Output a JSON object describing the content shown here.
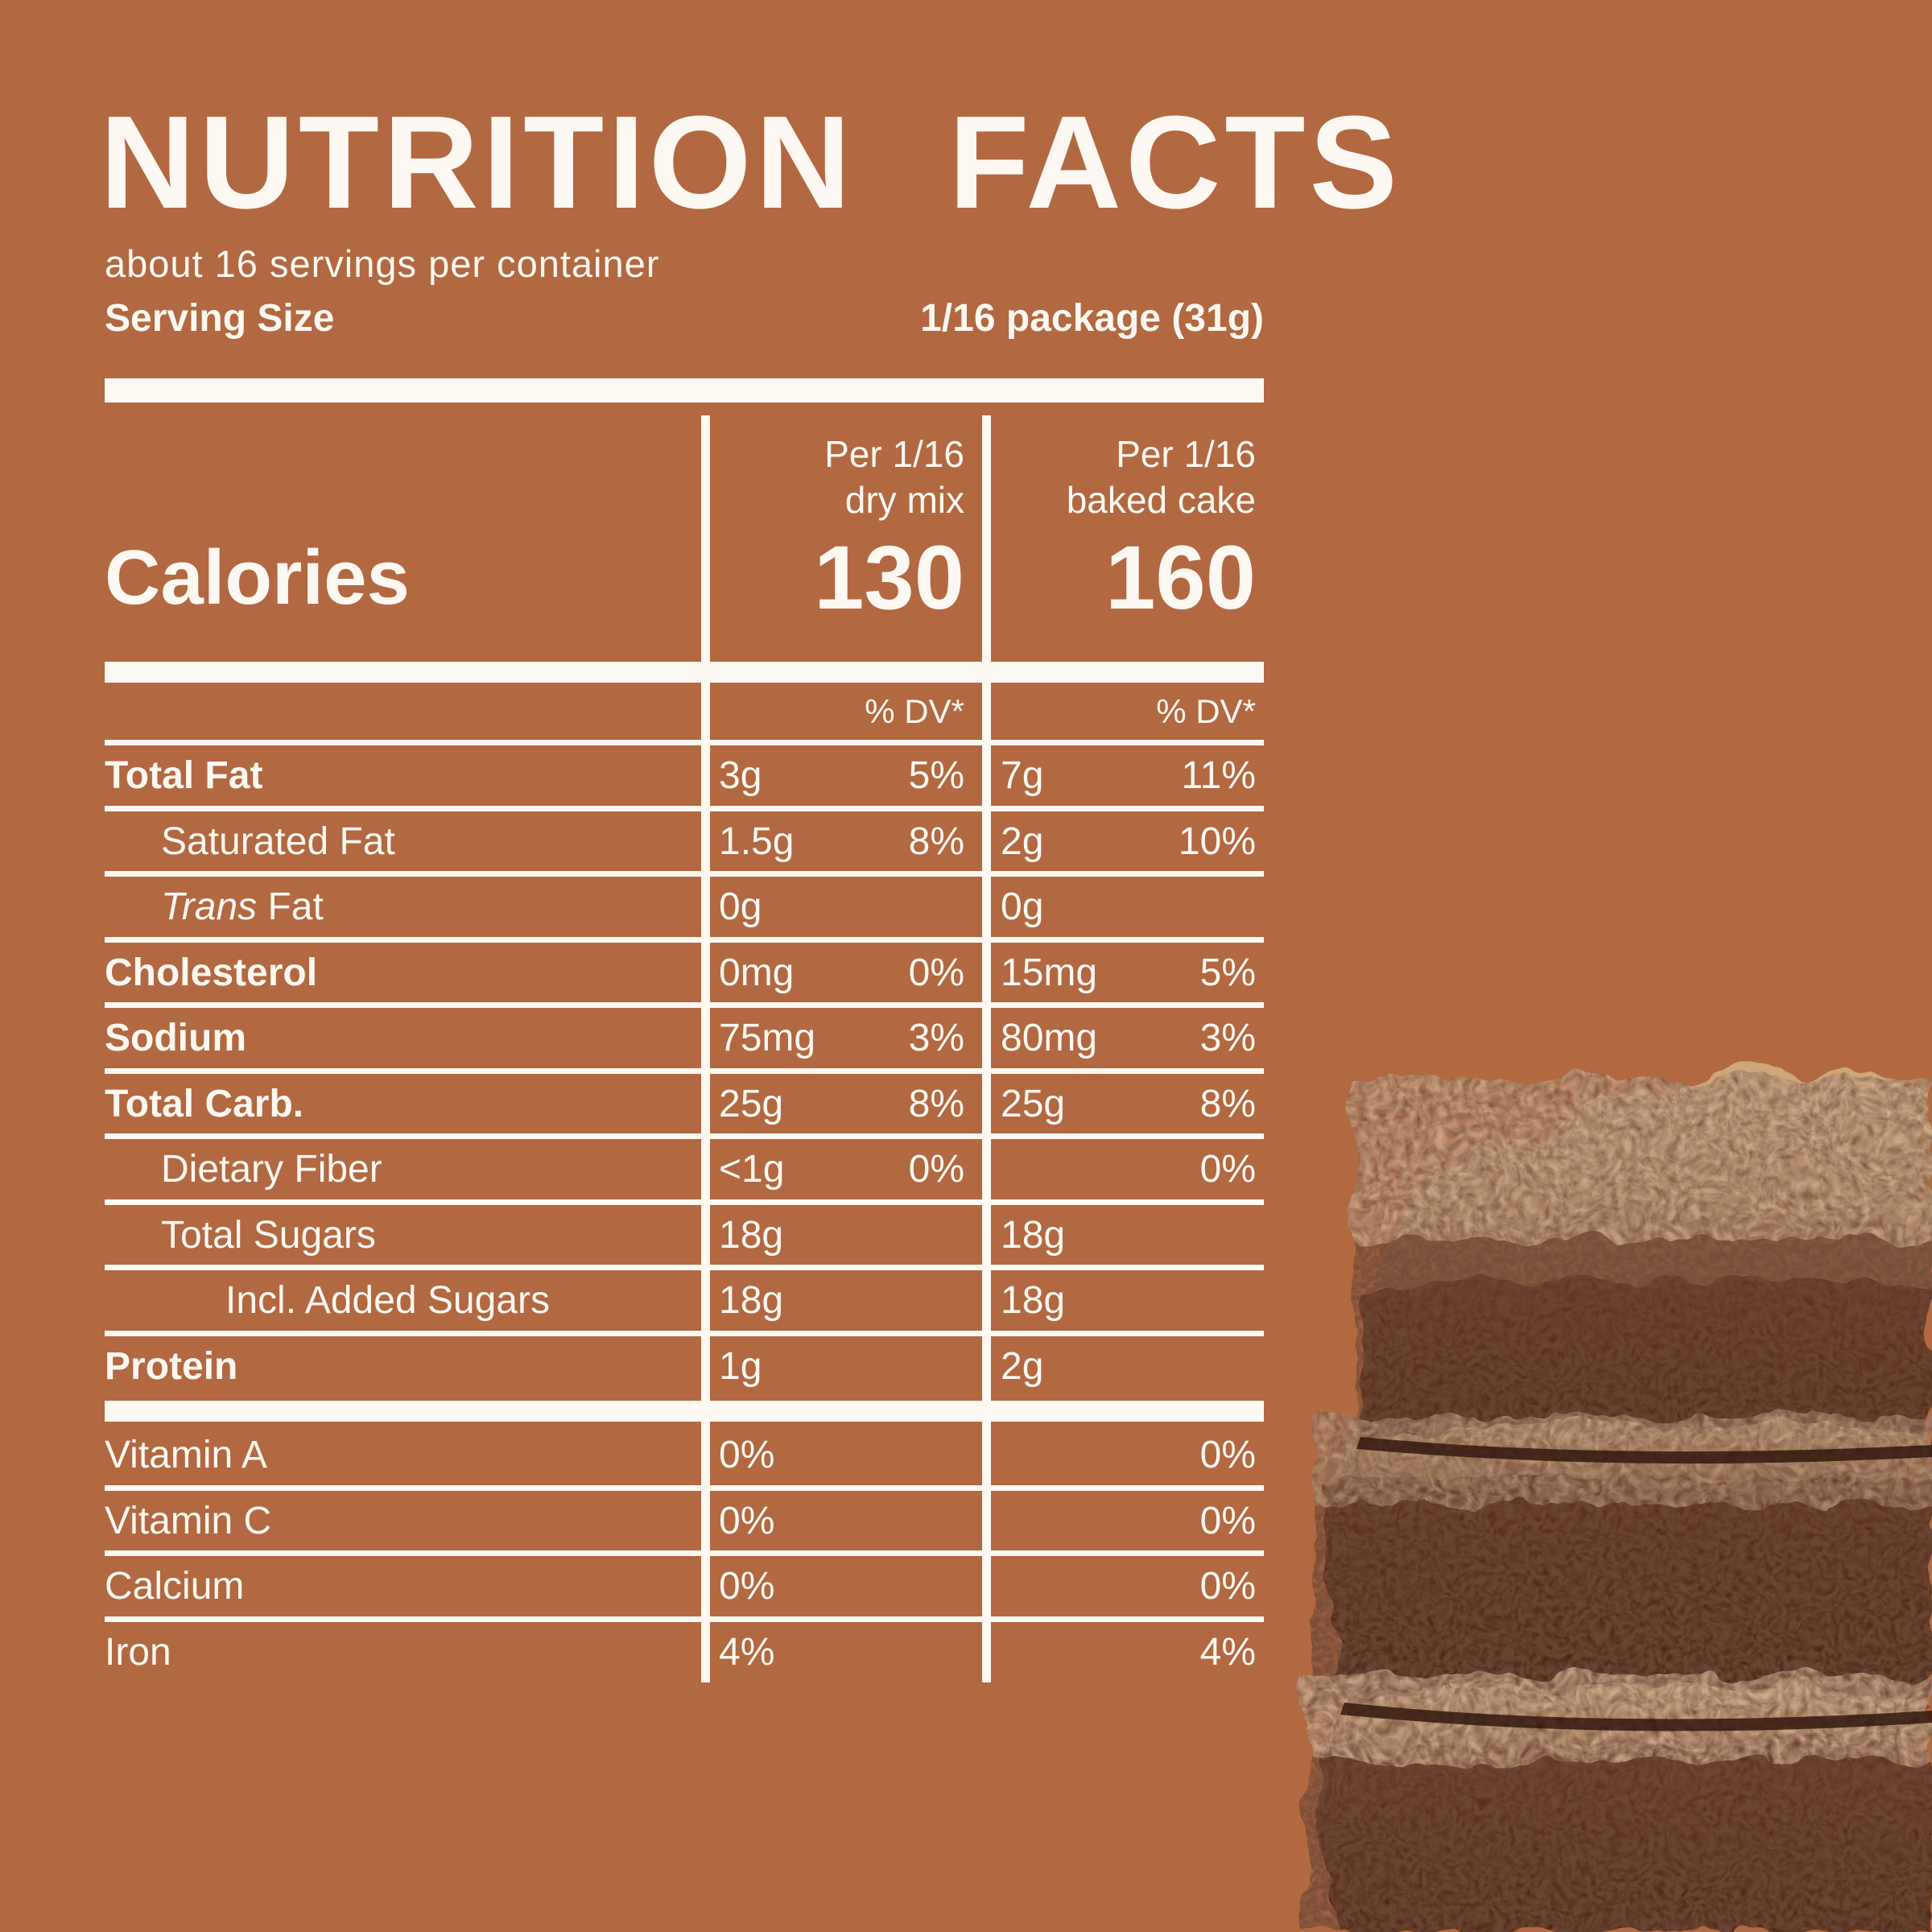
{
  "colors": {
    "background": "#b26840",
    "ink": "#fdf8f1"
  },
  "header": {
    "title": "NUTRITION FACTS",
    "servings_per_container": "about 16 servings per container",
    "serving_size_label": "Serving Size",
    "serving_size_value": "1/16 package (31g)"
  },
  "columns": {
    "col1_line1": "Per 1/16",
    "col1_line2": "dry mix",
    "col2_line1": "Per 1/16",
    "col2_line2": "baked cake",
    "dv_header_col1": "% DV*",
    "dv_header_col2": "% DV*"
  },
  "calories": {
    "label": "Calories",
    "dry_mix": "130",
    "baked_cake": "160"
  },
  "nutrients": [
    {
      "label": "Total Fat",
      "bold": true,
      "indent": 0,
      "c1_amount": "3g",
      "c1_dv": "5%",
      "c2_amount": "7g",
      "c2_dv": "11%"
    },
    {
      "label": "Saturated Fat",
      "bold": false,
      "indent": 1,
      "c1_amount": "1.5g",
      "c1_dv": "8%",
      "c2_amount": "2g",
      "c2_dv": "10%"
    },
    {
      "label_italic": "Trans",
      "label": "Fat",
      "bold": false,
      "indent": 1,
      "c1_amount": "0g",
      "c1_dv": "",
      "c2_amount": "0g",
      "c2_dv": ""
    },
    {
      "label": "Cholesterol",
      "bold": true,
      "indent": 0,
      "c1_amount": "0mg",
      "c1_dv": "0%",
      "c2_amount": "15mg",
      "c2_dv": "5%"
    },
    {
      "label": "Sodium",
      "bold": true,
      "indent": 0,
      "c1_amount": "75mg",
      "c1_dv": "3%",
      "c2_amount": "80mg",
      "c2_dv": "3%"
    },
    {
      "label": "Total Carb.",
      "bold": true,
      "indent": 0,
      "c1_amount": "25g",
      "c1_dv": "8%",
      "c2_amount": "25g",
      "c2_dv": "8%"
    },
    {
      "label": "Dietary Fiber",
      "bold": false,
      "indent": 1,
      "c1_amount": "<1g",
      "c1_dv": "0%",
      "c2_amount": "",
      "c2_dv": "0%"
    },
    {
      "label": "Total Sugars",
      "bold": false,
      "indent": 1,
      "c1_amount": "18g",
      "c1_dv": "",
      "c2_amount": "18g",
      "c2_dv": ""
    },
    {
      "label": "Incl. Added Sugars",
      "bold": false,
      "indent": 2,
      "c1_amount": "18g",
      "c1_dv": "",
      "c2_amount": "18g",
      "c2_dv": ""
    },
    {
      "label": "Protein",
      "bold": true,
      "indent": 0,
      "c1_amount": "1g",
      "c1_dv": "",
      "c2_amount": "2g",
      "c2_dv": ""
    }
  ],
  "vitamins": [
    {
      "label": "Vitamin A",
      "c1": "0%",
      "c2": "0%"
    },
    {
      "label": "Vitamin C",
      "c1": "0%",
      "c2": "0%"
    },
    {
      "label": "Calcium",
      "c1": "0%",
      "c2": "0%"
    },
    {
      "label": "Iron",
      "c1": "4%",
      "c2": "4%"
    }
  ],
  "hero_image": {
    "name": "brownie-stack-photo"
  }
}
